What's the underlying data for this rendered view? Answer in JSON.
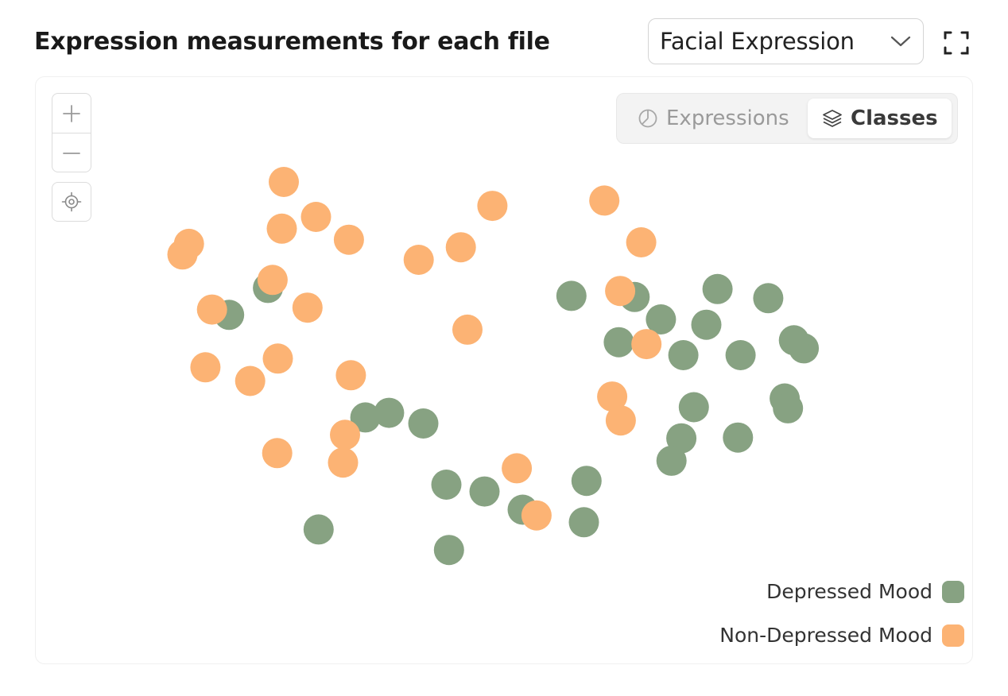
{
  "header": {
    "title": "Expression measurements for each file",
    "dropdown_value": "Facial Expression"
  },
  "icons": {
    "dropdown": "chevron-down-icon",
    "fullscreen": "fullscreen-icon",
    "zoom_in": "plus-icon",
    "zoom_out": "minus-icon",
    "recenter": "target-icon",
    "expressions": "pie-chart-icon",
    "classes": "layers-icon"
  },
  "view_toggle": {
    "options": [
      "Expressions",
      "Classes"
    ],
    "selected": "Classes"
  },
  "legend": [
    {
      "label": "Depressed Mood",
      "color": "#87a282"
    },
    {
      "label": "Non-Depressed Mood",
      "color": "#fcb374"
    }
  ],
  "chart_data": {
    "type": "scatter",
    "title": "",
    "xlabel": "",
    "ylabel": "",
    "grid": false,
    "axes_visible": false,
    "xlim": [
      0,
      100
    ],
    "ylim": [
      0,
      100
    ],
    "legend_position": "bottom-right",
    "series": [
      {
        "name": "Depressed Mood",
        "color": "#87a282",
        "points": [
          [
            8,
            35
          ],
          [
            13.9,
            27.9
          ],
          [
            60,
            30
          ],
          [
            69.6,
            30.3
          ],
          [
            82.2,
            28.2
          ],
          [
            89.9,
            30.6
          ],
          [
            73.6,
            36.2
          ],
          [
            80.5,
            37.6
          ],
          [
            67.2,
            42.2
          ],
          [
            77,
            45.6
          ],
          [
            85.7,
            45.6
          ],
          [
            95.3,
            43.8
          ],
          [
            93.8,
            41.7
          ],
          [
            28.7,
            62
          ],
          [
            32.3,
            60.8
          ],
          [
            37.5,
            63.6
          ],
          [
            78.6,
            59.3
          ],
          [
            92.4,
            57
          ],
          [
            92.9,
            59.6
          ],
          [
            76.7,
            67.5
          ],
          [
            85.3,
            67.3
          ],
          [
            75.2,
            73.4
          ],
          [
            41,
            79.7
          ],
          [
            62.3,
            78.7
          ],
          [
            46.8,
            81.5
          ],
          [
            52.6,
            86.3
          ],
          [
            61.9,
            89.6
          ],
          [
            21.6,
            91.5
          ],
          [
            41.4,
            96.9
          ]
        ]
      },
      {
        "name": "Non-Depressed Mood",
        "color": "#fcb374",
        "points": [
          [
            16.3,
            0
          ],
          [
            65,
            4.9
          ],
          [
            48,
            6.3
          ],
          [
            16,
            12.3
          ],
          [
            21.2,
            9.2
          ],
          [
            26.2,
            15.2
          ],
          [
            1.9,
            16.3
          ],
          [
            0.9,
            19.1
          ],
          [
            43.2,
            17.2
          ],
          [
            36.8,
            20.5
          ],
          [
            70.6,
            15.9
          ],
          [
            14.6,
            25.8
          ],
          [
            5.4,
            33.6
          ],
          [
            19.9,
            33.1
          ],
          [
            67.4,
            28.7
          ],
          [
            44.2,
            38.9
          ],
          [
            71.4,
            42.7
          ],
          [
            15.4,
            46.5
          ],
          [
            4.4,
            48.8
          ],
          [
            26.5,
            50.9
          ],
          [
            11.2,
            52.4
          ],
          [
            66.2,
            56.5
          ],
          [
            67.5,
            62.8
          ],
          [
            25.6,
            66.6
          ],
          [
            15.3,
            71.4
          ],
          [
            25.3,
            73.9
          ],
          [
            51.7,
            75.4
          ],
          [
            54.7,
            87.8
          ]
        ]
      }
    ]
  }
}
